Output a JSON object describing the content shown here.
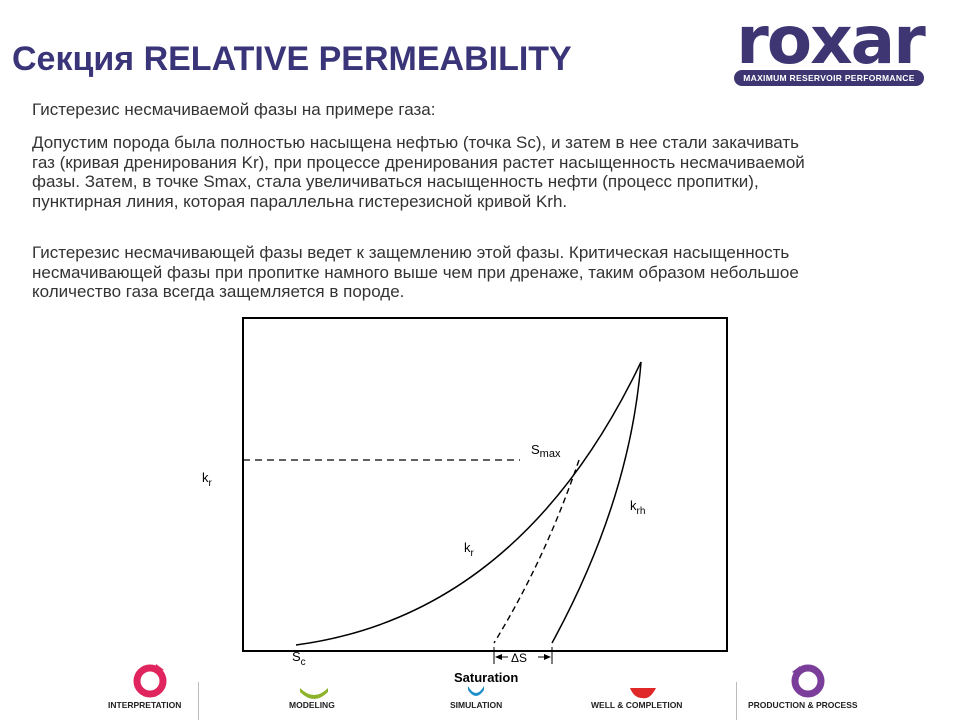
{
  "header": {
    "title": "Секция RELATIVE PERMEABILITY"
  },
  "logo": {
    "word": "roxar",
    "tagline": "MAXIMUM RESERVOIR PERFORMANCE"
  },
  "content": {
    "paragraph1": "Гистерезис несмачиваемой фазы на примере газа:",
    "paragraph2": "Допустим порода была полностью насыщена нефтью (точка Sc), и затем в нее стали закачивать газ (кривая дренирования Kr), при процессе дренирования растет насыщенность несмачиваемой фазы.  Затем, в точке Smax, стала увеличиваться насыщенность нефти (процесс пропитки), пунктирная линия, которая параллельна гистерезисной кривой Krh.",
    "paragraph3": "Гистерезис несмачивающей фазы ведет к защемлению этой фазы. Критическая насыщенность несмачивающей фазы при пропитке намного выше чем при дренаже, таким образом небольшое количество газа всегда защемляется в породе."
  },
  "diagram": {
    "y_axis_label": "k",
    "y_axis_sub": "r",
    "label_smax": "S",
    "label_smax_sub": "max",
    "label_kr": "k",
    "label_kr_sub": "r",
    "label_krh": "k",
    "label_krh_sub": "rh",
    "label_sc": "S",
    "label_sc_sub": "c",
    "label_delta_s": "ΔS",
    "x_axis_label": "Saturation"
  },
  "nav": {
    "items": [
      {
        "label": "INTERPRETATION",
        "color": "#e0245e"
      },
      {
        "label": "MODELING",
        "color": "#8db32a"
      },
      {
        "label": "SIMULATION",
        "color": "#1e8fc8"
      },
      {
        "label": "WELL & COMPLETION",
        "color": "#e02828"
      },
      {
        "label": "PRODUCTION & PROCESS",
        "color": "#7a3d9a"
      }
    ]
  }
}
